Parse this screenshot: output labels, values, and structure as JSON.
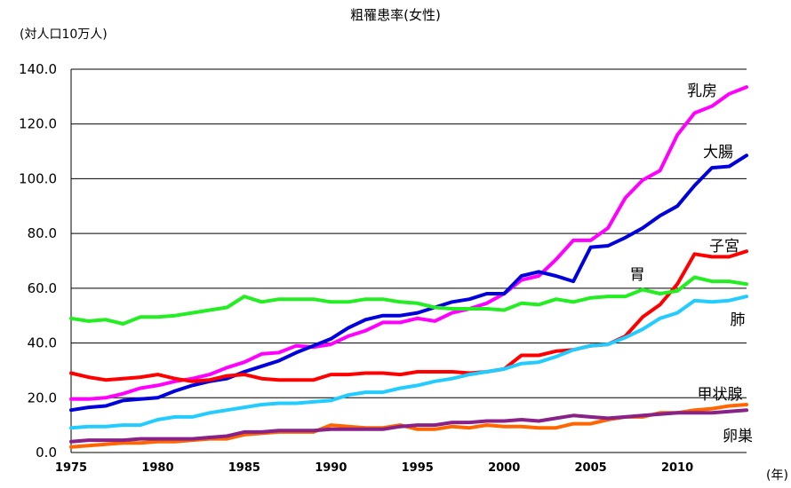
{
  "chart_data": {
    "type": "line",
    "title": "粗罹患率(女性)",
    "ylabel": "(対人口10万人)",
    "xlabel": "(年)",
    "ylim": [
      0,
      140
    ],
    "xlim": [
      1975,
      2014
    ],
    "yticks": [
      "0.0",
      "20.0",
      "40.0",
      "60.0",
      "80.0",
      "100.0",
      "120.0",
      "140.0"
    ],
    "xticks": [
      "1975",
      "1980",
      "1985",
      "1990",
      "1995",
      "2000",
      "2005",
      "2010"
    ],
    "grid": true,
    "x": [
      1975,
      1976,
      1977,
      1978,
      1979,
      1980,
      1981,
      1982,
      1983,
      1984,
      1985,
      1986,
      1987,
      1988,
      1989,
      1990,
      1991,
      1992,
      1993,
      1994,
      1995,
      1996,
      1997,
      1998,
      1999,
      2000,
      2001,
      2002,
      2003,
      2004,
      2005,
      2006,
      2007,
      2008,
      2009,
      2010,
      2011,
      2012,
      2013,
      2014
    ],
    "series": [
      {
        "name": "乳房",
        "color": "#ff00ff",
        "values": [
          19.5,
          19.5,
          20,
          21.5,
          23.5,
          24.5,
          26,
          27,
          28.5,
          31,
          33,
          36,
          36.5,
          39,
          38.5,
          39.5,
          42.5,
          44.5,
          47.5,
          47.5,
          49,
          48,
          51,
          52.5,
          54.5,
          58,
          63,
          64.5,
          70.5,
          77.5,
          77.5,
          82,
          93,
          99.5,
          103,
          116,
          124,
          126.5,
          131,
          133.5
        ]
      },
      {
        "name": "大腸",
        "color": "#0000dd",
        "values": [
          15.5,
          16.5,
          17,
          19,
          19.5,
          20,
          22.5,
          24.5,
          26,
          27,
          29.5,
          31.5,
          33.5,
          36.5,
          39,
          41.5,
          45.5,
          48.5,
          50,
          50,
          51,
          53,
          55,
          56,
          58,
          58,
          64.5,
          66,
          64.5,
          62.5,
          75,
          75.5,
          78.5,
          82,
          86.5,
          90,
          97.5,
          104,
          104.5,
          108.5
        ]
      },
      {
        "name": "子宮",
        "color": "#ff0000",
        "values": [
          29,
          27.5,
          26.5,
          27,
          27.5,
          28.5,
          27,
          26,
          26.5,
          28,
          28.5,
          27,
          26.5,
          26.5,
          26.5,
          28.5,
          28.5,
          29,
          29,
          28.5,
          29.5,
          29.5,
          29.5,
          29,
          29.5,
          30.5,
          35.5,
          35.5,
          37,
          37.5,
          39,
          39.5,
          42.5,
          49.5,
          54,
          61.5,
          72.5,
          71.5,
          71.5,
          73.5
        ]
      },
      {
        "name": "胃",
        "color": "#22ee22",
        "values": [
          49,
          48,
          48.5,
          47,
          49.5,
          49.5,
          50,
          51,
          52,
          53,
          57,
          55,
          56,
          56,
          56,
          55,
          55,
          56,
          56,
          55,
          54.5,
          53,
          52.5,
          52.5,
          52.5,
          52,
          54.5,
          54,
          56,
          55,
          56.5,
          57,
          57,
          59.5,
          58,
          59,
          64,
          62.5,
          62.5,
          61.5
        ]
      },
      {
        "name": "肺",
        "color": "#22ccff",
        "values": [
          9,
          9.5,
          9.5,
          10,
          10,
          12,
          13,
          13,
          14.5,
          15.5,
          16.5,
          17.5,
          18,
          18,
          18.5,
          19,
          21,
          22,
          22,
          23.5,
          24.5,
          26,
          27,
          28.5,
          29.5,
          30.5,
          32.5,
          33,
          35,
          37.5,
          39,
          39.5,
          42,
          45,
          49,
          51,
          55.5,
          55,
          55.5,
          57
        ]
      },
      {
        "name": "甲状腺",
        "color": "#ff6600",
        "values": [
          2,
          2.5,
          3,
          3.5,
          3.5,
          4,
          4,
          4.5,
          5,
          5,
          6.5,
          7,
          7.5,
          7.5,
          7.5,
          10,
          9.5,
          9,
          9,
          10,
          8.5,
          8.5,
          9.5,
          9,
          10,
          9.5,
          9.5,
          9,
          9,
          10.5,
          10.5,
          12,
          13,
          13,
          14.5,
          14.5,
          15.5,
          16,
          17,
          17.5
        ]
      },
      {
        "name": "卵巣",
        "color": "#882288",
        "values": [
          4,
          4.5,
          4.5,
          4.5,
          5,
          5,
          5,
          5,
          5.5,
          6,
          7.5,
          7.5,
          8,
          8,
          8,
          8.5,
          8.5,
          8.5,
          8.5,
          9.5,
          10,
          10,
          11,
          11,
          11.5,
          11.5,
          12,
          11.5,
          12.5,
          13.5,
          13,
          12.5,
          13,
          13.5,
          14,
          14.5,
          14.5,
          14.5,
          15,
          15.5
        ]
      }
    ]
  }
}
